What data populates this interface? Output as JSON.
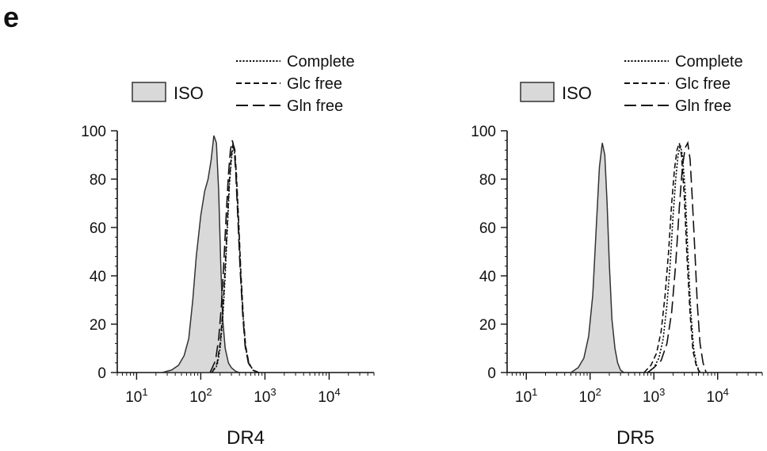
{
  "panel_label": "e",
  "chart_data": [
    {
      "type": "histogram",
      "title": "",
      "xlabel": "DR4",
      "ylabel": "",
      "x_scale": "log",
      "xlim": [
        5,
        50000
      ],
      "ylim": [
        0,
        100
      ],
      "x_tick_labels": [
        {
          "value": 10,
          "base": "10",
          "exp": "1"
        },
        {
          "value": 100,
          "base": "10",
          "exp": "2"
        },
        {
          "value": 1000,
          "base": "10",
          "exp": "3"
        },
        {
          "value": 10000,
          "base": "10",
          "exp": "4"
        }
      ],
      "y_ticks": [
        "0",
        "20",
        "40",
        "60",
        "80",
        "100"
      ],
      "y_tick_values": [
        0,
        20,
        40,
        60,
        80,
        100
      ],
      "iso_legend": "ISO",
      "legend": [
        "Complete",
        "Glc free",
        "Gln free"
      ],
      "series": [
        {
          "name": "ISO",
          "style": "filled",
          "fill": "#d9d9d9",
          "stroke": "#333333",
          "x": [
            25,
            35,
            45,
            55,
            65,
            75,
            85,
            100,
            115,
            130,
            145,
            160,
            175,
            190,
            205,
            220,
            240,
            270,
            300,
            350,
            400
          ],
          "y": [
            0,
            1,
            3,
            7,
            14,
            30,
            48,
            65,
            75,
            80,
            88,
            98,
            95,
            75,
            45,
            22,
            10,
            4,
            2,
            0.5,
            0
          ]
        },
        {
          "name": "Complete",
          "style": "dotted",
          "stroke": "#111111",
          "x": [
            150,
            180,
            200,
            220,
            240,
            260,
            280,
            300,
            320,
            340,
            360,
            390,
            420,
            460,
            500,
            560,
            650,
            800
          ],
          "y": [
            0,
            3,
            10,
            22,
            40,
            60,
            78,
            88,
            94,
            90,
            80,
            60,
            40,
            22,
            10,
            4,
            1,
            0
          ]
        },
        {
          "name": "Glc free",
          "style": "short-dash",
          "stroke": "#111111",
          "x": [
            150,
            180,
            200,
            220,
            240,
            260,
            280,
            300,
            320,
            340,
            360,
            390,
            420,
            460,
            500,
            560,
            650,
            800
          ],
          "y": [
            0,
            4,
            12,
            25,
            44,
            63,
            80,
            90,
            95,
            92,
            82,
            62,
            42,
            23,
            11,
            4,
            1,
            0
          ]
        },
        {
          "name": "Gln free",
          "style": "long-dash",
          "stroke": "#111111",
          "x": [
            140,
            170,
            190,
            210,
            230,
            250,
            270,
            290,
            310,
            330,
            350,
            380,
            410,
            450,
            490,
            550,
            640,
            800
          ],
          "y": [
            0,
            5,
            14,
            28,
            47,
            66,
            82,
            92,
            96,
            93,
            83,
            63,
            43,
            24,
            11,
            4,
            1,
            0
          ]
        }
      ]
    },
    {
      "type": "histogram",
      "title": "",
      "xlabel": "DR5",
      "ylabel": "",
      "x_scale": "log",
      "xlim": [
        5,
        50000
      ],
      "ylim": [
        0,
        100
      ],
      "x_tick_labels": [
        {
          "value": 10,
          "base": "10",
          "exp": "1"
        },
        {
          "value": 100,
          "base": "10",
          "exp": "2"
        },
        {
          "value": 1000,
          "base": "10",
          "exp": "3"
        },
        {
          "value": 10000,
          "base": "10",
          "exp": "4"
        }
      ],
      "y_ticks": [
        "0",
        "20",
        "40",
        "60",
        "80",
        "100"
      ],
      "y_tick_values": [
        0,
        20,
        40,
        60,
        80,
        100
      ],
      "iso_legend": "ISO",
      "legend": [
        "Complete",
        "Glc free",
        "Gln free"
      ],
      "series": [
        {
          "name": "ISO",
          "style": "filled",
          "fill": "#d9d9d9",
          "stroke": "#333333",
          "x": [
            50,
            65,
            80,
            95,
            110,
            125,
            140,
            155,
            170,
            185,
            200,
            220,
            245,
            270,
            300,
            340
          ],
          "y": [
            0,
            2,
            6,
            15,
            32,
            60,
            85,
            95,
            90,
            70,
            45,
            22,
            10,
            4,
            1,
            0
          ]
        },
        {
          "name": "Complete",
          "style": "dotted",
          "stroke": "#111111",
          "x": [
            800,
            1000,
            1200,
            1400,
            1600,
            1800,
            2000,
            2200,
            2400,
            2600,
            2800,
            3100,
            3400,
            3800,
            4200,
            4700,
            5300
          ],
          "y": [
            0,
            2,
            6,
            14,
            28,
            45,
            65,
            80,
            90,
            94,
            90,
            75,
            50,
            25,
            10,
            3,
            0
          ]
        },
        {
          "name": "Glc free",
          "style": "short-dash",
          "stroke": "#111111",
          "x": [
            700,
            900,
            1100,
            1300,
            1500,
            1700,
            1900,
            2100,
            2300,
            2500,
            2700,
            3000,
            3300,
            3700,
            4100,
            4600,
            5200
          ],
          "y": [
            0,
            3,
            8,
            17,
            32,
            50,
            70,
            84,
            92,
            95,
            90,
            73,
            48,
            24,
            9,
            3,
            0
          ]
        },
        {
          "name": "Gln free",
          "style": "long-dash",
          "stroke": "#111111",
          "x": [
            800,
            1000,
            1300,
            1600,
            1900,
            2200,
            2500,
            2800,
            3100,
            3400,
            3700,
            4000,
            4400,
            4800,
            5300,
            5900,
            6600
          ],
          "y": [
            0,
            2,
            5,
            12,
            25,
            45,
            68,
            85,
            93,
            95,
            88,
            72,
            50,
            28,
            12,
            4,
            0
          ]
        }
      ]
    }
  ]
}
